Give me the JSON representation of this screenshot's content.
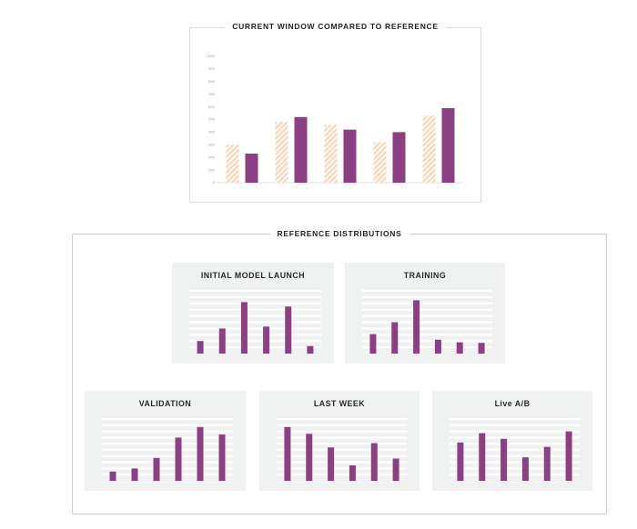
{
  "colors": {
    "accent": "#8c3f82",
    "reference": "#f3c9a2",
    "grid": "#ffffff"
  },
  "top_chart": {
    "title": "CURRENT WINDOW COMPARED TO REFERENCE",
    "chart_data": {
      "type": "bar",
      "ylim": [
        0,
        100
      ],
      "yticks": [
        "0",
        "10%",
        "20%",
        "30%",
        "40%",
        "50%",
        "60%",
        "70%",
        "80%",
        "90%",
        "100%"
      ],
      "series": [
        {
          "values": [
            30,
            48,
            46,
            32,
            53
          ],
          "style": "hatched"
        },
        {
          "values": [
            23,
            52,
            42,
            40,
            59
          ],
          "style": "solid"
        }
      ]
    }
  },
  "reference": {
    "title": "REFERENCE DISTRIBUTIONS",
    "cards": [
      {
        "title": "INITIAL MODEL LAUNCH",
        "chart_data": {
          "type": "bar",
          "ylim": [
            0,
            100
          ],
          "values": [
            20,
            40,
            82,
            43,
            75,
            12
          ]
        }
      },
      {
        "title": "TRAINING",
        "chart_data": {
          "type": "bar",
          "ylim": [
            0,
            100
          ],
          "values": [
            31,
            50,
            85,
            22,
            18,
            17
          ]
        }
      },
      {
        "title": "VALIDATION",
        "chart_data": {
          "type": "bar",
          "ylim": [
            0,
            100
          ],
          "values": [
            15,
            20,
            37,
            70,
            87,
            75
          ]
        }
      },
      {
        "title": "LAST WEEK",
        "chart_data": {
          "type": "bar",
          "ylim": [
            0,
            100
          ],
          "values": [
            87,
            76,
            54,
            25,
            61,
            36
          ]
        }
      },
      {
        "title": "Live A/B",
        "chart_data": {
          "type": "bar",
          "ylim": [
            0,
            100
          ],
          "values": [
            62,
            77,
            68,
            38,
            55,
            80
          ]
        }
      }
    ]
  }
}
